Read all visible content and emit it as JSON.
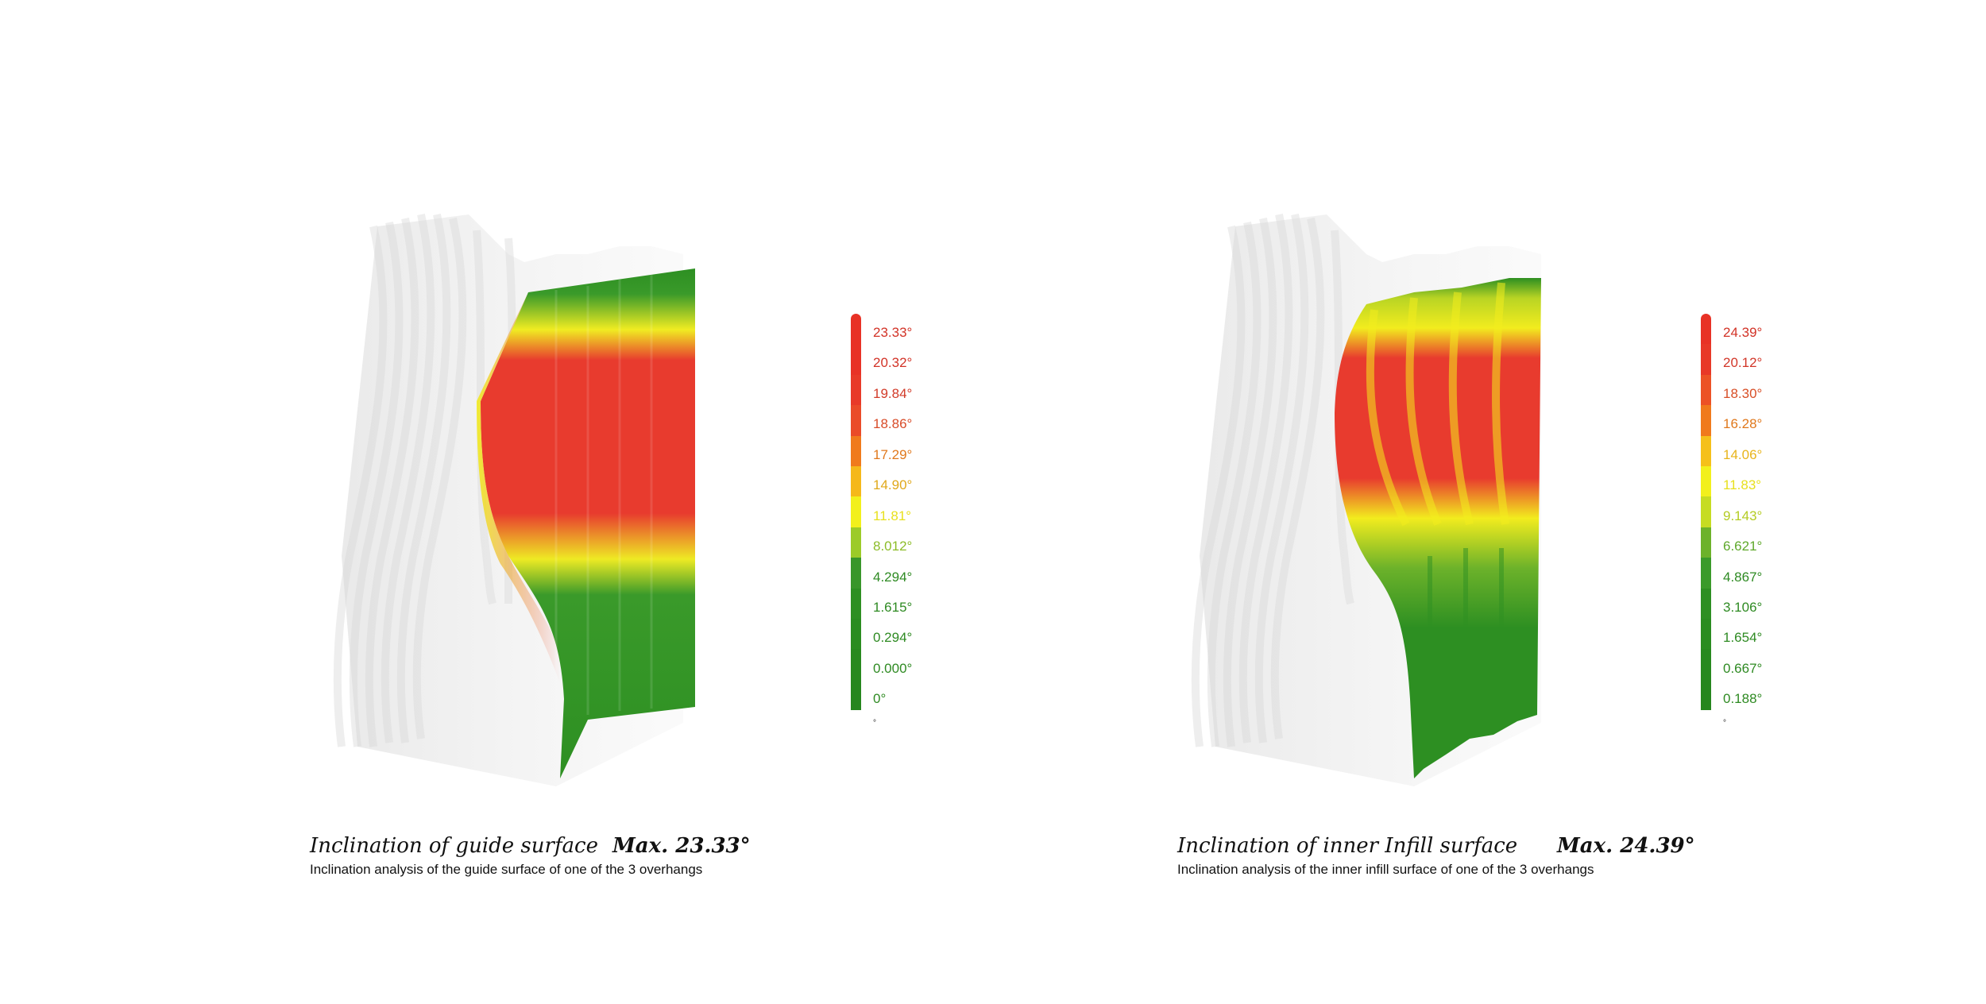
{
  "colors": {
    "red": "#e83b2e",
    "orange": "#f2861b",
    "yellow": "#f5ec1f",
    "yellowgreen": "#a8cf2a",
    "green": "#2d8f22",
    "ghost": "#d8d8d8"
  },
  "left": {
    "title": "Inclination of guide surface",
    "max": "Max. 23.33°",
    "subtitle": "Inclination analysis of the guide surface of one of the 3 overhangs",
    "unit": "°",
    "legend": [
      {
        "label": "23.33°",
        "color": "#e83226"
      },
      {
        "label": "20.32°",
        "color": "#e83226"
      },
      {
        "label": "19.84°",
        "color": "#e83a28"
      },
      {
        "label": "18.86°",
        "color": "#ea4b28"
      },
      {
        "label": "17.29°",
        "color": "#f07a1c"
      },
      {
        "label": "14.90°",
        "color": "#f5b81a"
      },
      {
        "label": "11.81°",
        "color": "#f2f01c"
      },
      {
        "label": "8.012°",
        "color": "#9ccb28"
      },
      {
        "label": "4.294°",
        "color": "#38962a"
      },
      {
        "label": "1.615°",
        "color": "#2d8f22"
      },
      {
        "label": "0.294°",
        "color": "#2a8c20"
      },
      {
        "label": "0.000°",
        "color": "#28891f"
      },
      {
        "label": "0°",
        "color": "#26861e"
      }
    ]
  },
  "right": {
    "title": "Inclination of inner Infill surface",
    "max": "Max. 24.39°",
    "subtitle": "Inclination analysis of the inner infill  surface of one of the 3 overhangs",
    "unit": "°",
    "legend": [
      {
        "label": "24.39°",
        "color": "#e83226"
      },
      {
        "label": "20.12°",
        "color": "#e83828"
      },
      {
        "label": "18.30°",
        "color": "#ec5226"
      },
      {
        "label": "16.28°",
        "color": "#f07a1c"
      },
      {
        "label": "14.06°",
        "color": "#f5c01a"
      },
      {
        "label": "11.83°",
        "color": "#f2f01c"
      },
      {
        "label": "9.143°",
        "color": "#c6dc22"
      },
      {
        "label": "6.621°",
        "color": "#6cb22a"
      },
      {
        "label": "4.867°",
        "color": "#3a9a2a"
      },
      {
        "label": "3.106°",
        "color": "#2d8f22"
      },
      {
        "label": "1.654°",
        "color": "#2a8c20"
      },
      {
        "label": "0.667°",
        "color": "#28891f"
      },
      {
        "label": "0.188°",
        "color": "#26861e"
      }
    ]
  }
}
